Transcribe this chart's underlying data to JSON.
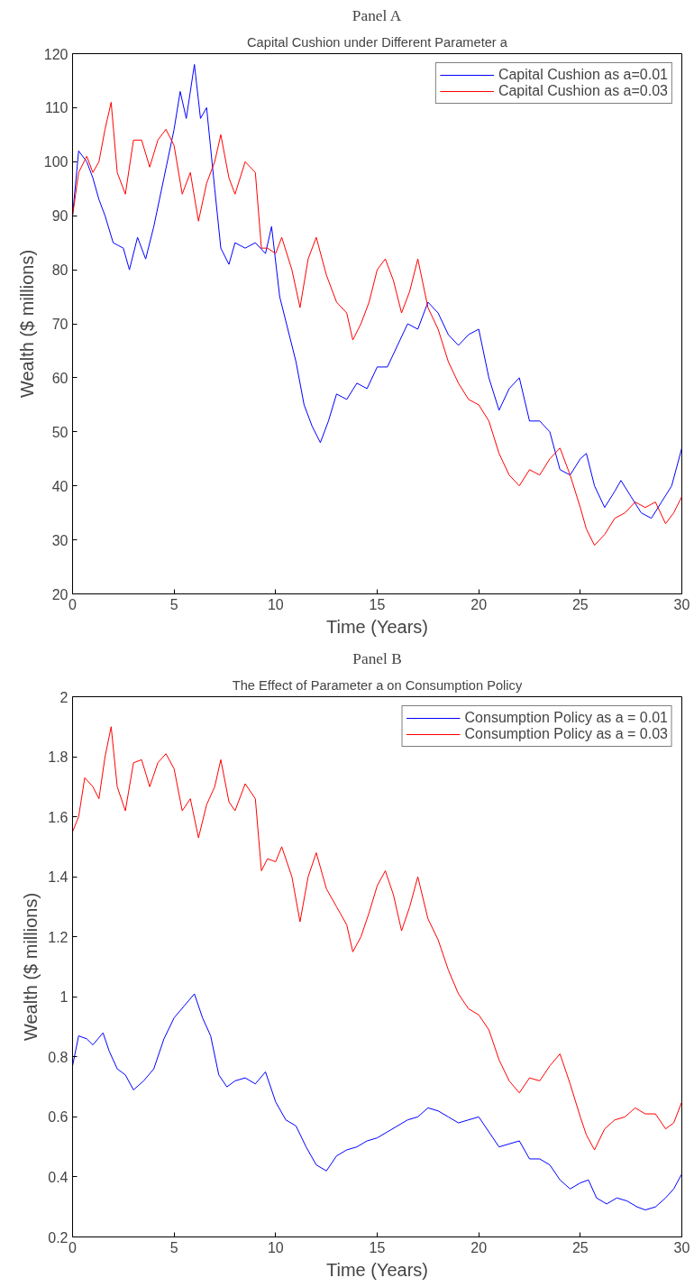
{
  "chart_data": [
    {
      "type": "line",
      "title": "Panel A",
      "subtitle": "Capital Cushion under Different Parameter a",
      "xlabel": "Time (Years)",
      "ylabel": "Wealth ($ millions)",
      "xlim": [
        0,
        30
      ],
      "ylim": [
        20,
        120
      ],
      "xticks": [
        0,
        5,
        10,
        15,
        20,
        25,
        30
      ],
      "yticks": [
        20,
        30,
        40,
        50,
        60,
        70,
        80,
        90,
        100,
        110,
        120
      ],
      "grid": false,
      "legend": "top right",
      "marker": "none",
      "line_style": "solid",
      "series": [
        {
          "name": "Capital Cushion as a=0.01",
          "color": "#0000ff",
          "x": [
            0,
            0.3,
            0.7,
            1.0,
            1.3,
            1.6,
            2.0,
            2.5,
            2.8,
            3.2,
            3.6,
            4.0,
            4.5,
            5.0,
            5.3,
            5.6,
            6.0,
            6.3,
            6.6,
            7.0,
            7.3,
            7.7,
            8.0,
            8.5,
            9.0,
            9.5,
            9.8,
            10.2,
            10.6,
            11.0,
            11.4,
            11.8,
            12.2,
            12.6,
            13.0,
            13.5,
            14.0,
            14.5,
            15.0,
            15.5,
            16.0,
            16.5,
            17.0,
            17.5,
            18.0,
            18.5,
            19.0,
            19.5,
            20.0,
            20.5,
            21.0,
            21.5,
            22.0,
            22.5,
            23.0,
            23.5,
            24.0,
            24.5,
            25.0,
            25.3,
            25.7,
            26.2,
            26.7,
            27.0,
            27.5,
            28.0,
            28.5,
            29.0,
            29.5,
            30
          ],
          "values": [
            90,
            102,
            100,
            97,
            93,
            90,
            85,
            84,
            80,
            86,
            82,
            88,
            97,
            106,
            113,
            108,
            118,
            108,
            110,
            95,
            84,
            81,
            85,
            84,
            85,
            83,
            88,
            75,
            69,
            63,
            55,
            51,
            48,
            52,
            57,
            56,
            59,
            58,
            62,
            62,
            66,
            70,
            69,
            74,
            72,
            68,
            66,
            68,
            69,
            60,
            54,
            58,
            60,
            52,
            52,
            50,
            43,
            42,
            45,
            46,
            40,
            36,
            39,
            41,
            38,
            35,
            34,
            37,
            40,
            47
          ]
        },
        {
          "name": "Capital Cushion as a=0.03",
          "color": "#ff0000",
          "x": [
            0,
            0.3,
            0.7,
            1.0,
            1.3,
            1.6,
            1.9,
            2.2,
            2.6,
            3.0,
            3.4,
            3.8,
            4.2,
            4.6,
            5.0,
            5.4,
            5.8,
            6.2,
            6.6,
            7.0,
            7.3,
            7.7,
            8.0,
            8.5,
            9.0,
            9.3,
            9.6,
            10.0,
            10.3,
            10.8,
            11.2,
            11.6,
            12.0,
            12.5,
            13.0,
            13.5,
            13.8,
            14.2,
            14.6,
            15.0,
            15.4,
            15.8,
            16.2,
            16.6,
            17.0,
            17.5,
            18.0,
            18.5,
            19.0,
            19.5,
            20.0,
            20.5,
            21.0,
            21.5,
            22.0,
            22.5,
            23.0,
            23.5,
            24.0,
            24.5,
            25.0,
            25.3,
            25.7,
            26.2,
            26.7,
            27.2,
            27.7,
            28.2,
            28.7,
            29.2,
            29.6,
            30
          ],
          "values": [
            90,
            98,
            101,
            98,
            100,
            106,
            111,
            98,
            94,
            104,
            104,
            99,
            104,
            106,
            103,
            94,
            98,
            89,
            96,
            100,
            105,
            97,
            94,
            100,
            98,
            84,
            84,
            83,
            86,
            80,
            73,
            82,
            86,
            79,
            74,
            72,
            67,
            70,
            74,
            80,
            82,
            78,
            72,
            76,
            82,
            73,
            69,
            63,
            59,
            56,
            55,
            52,
            46,
            42,
            40,
            43,
            42,
            45,
            47,
            42,
            36,
            32,
            29,
            31,
            34,
            35,
            37,
            36,
            37,
            33,
            35,
            38
          ]
        }
      ]
    },
    {
      "type": "line",
      "title": "Panel B",
      "subtitle": "The Effect of Parameter a on Consumption Policy",
      "xlabel": "Time (Years)",
      "ylabel": "Wealth ($ millions)",
      "xlim": [
        0,
        30
      ],
      "ylim": [
        0.2,
        2
      ],
      "xticks": [
        0,
        5,
        10,
        15,
        20,
        25,
        30
      ],
      "yticks": [
        0.2,
        0.4,
        0.6,
        0.8,
        1,
        1.2,
        1.4,
        1.6,
        1.8,
        2
      ],
      "grid": false,
      "legend": "top right",
      "marker": "none",
      "line_style": "solid",
      "series": [
        {
          "name": "Consumption Policy as a = 0.01",
          "color": "#0000ff",
          "x": [
            0,
            0.3,
            0.7,
            1.0,
            1.5,
            1.8,
            2.2,
            2.6,
            3.0,
            3.5,
            4.0,
            4.5,
            5.0,
            5.5,
            6.0,
            6.4,
            6.8,
            7.2,
            7.6,
            8.0,
            8.5,
            9.0,
            9.5,
            10.0,
            10.5,
            11.0,
            11.5,
            12.0,
            12.5,
            13.0,
            13.5,
            14.0,
            14.5,
            15.0,
            15.5,
            16.0,
            16.5,
            17.0,
            17.5,
            18.0,
            18.5,
            19.0,
            19.5,
            20.0,
            20.5,
            21.0,
            21.5,
            22.0,
            22.5,
            23.0,
            23.5,
            24.0,
            24.5,
            25.0,
            25.4,
            25.8,
            26.3,
            26.8,
            27.3,
            27.8,
            28.2,
            28.7,
            29.2,
            29.6,
            30
          ],
          "values": [
            0.77,
            0.87,
            0.86,
            0.84,
            0.88,
            0.82,
            0.76,
            0.74,
            0.69,
            0.72,
            0.76,
            0.86,
            0.93,
            0.97,
            1.01,
            0.93,
            0.87,
            0.74,
            0.7,
            0.72,
            0.73,
            0.71,
            0.75,
            0.65,
            0.59,
            0.57,
            0.5,
            0.44,
            0.42,
            0.47,
            0.49,
            0.5,
            0.52,
            0.53,
            0.55,
            0.57,
            0.59,
            0.6,
            0.63,
            0.62,
            0.6,
            0.58,
            0.59,
            0.6,
            0.55,
            0.5,
            0.51,
            0.52,
            0.46,
            0.46,
            0.44,
            0.39,
            0.36,
            0.38,
            0.39,
            0.33,
            0.31,
            0.33,
            0.32,
            0.3,
            0.29,
            0.3,
            0.33,
            0.36,
            0.41
          ]
        },
        {
          "name": "Consumption Policy as a = 0.03",
          "color": "#ff0000",
          "x": [
            0,
            0.3,
            0.6,
            1.0,
            1.3,
            1.6,
            1.9,
            2.2,
            2.6,
            3.0,
            3.4,
            3.8,
            4.2,
            4.6,
            5.0,
            5.4,
            5.8,
            6.2,
            6.6,
            7.0,
            7.3,
            7.7,
            8.0,
            8.5,
            9.0,
            9.3,
            9.6,
            10.0,
            10.3,
            10.8,
            11.2,
            11.6,
            12.0,
            12.5,
            13.0,
            13.5,
            13.8,
            14.2,
            14.6,
            15.0,
            15.4,
            15.8,
            16.2,
            16.6,
            17.0,
            17.5,
            18.0,
            18.5,
            19.0,
            19.5,
            20.0,
            20.5,
            21.0,
            21.5,
            22.0,
            22.5,
            23.0,
            23.5,
            24.0,
            24.5,
            25.0,
            25.3,
            25.7,
            26.2,
            26.7,
            27.2,
            27.7,
            28.2,
            28.7,
            29.2,
            29.6,
            30
          ],
          "values": [
            1.55,
            1.6,
            1.73,
            1.7,
            1.66,
            1.8,
            1.9,
            1.7,
            1.62,
            1.78,
            1.79,
            1.7,
            1.78,
            1.81,
            1.76,
            1.62,
            1.66,
            1.53,
            1.64,
            1.7,
            1.79,
            1.65,
            1.62,
            1.71,
            1.66,
            1.42,
            1.46,
            1.45,
            1.5,
            1.4,
            1.25,
            1.4,
            1.48,
            1.36,
            1.3,
            1.24,
            1.15,
            1.2,
            1.28,
            1.37,
            1.42,
            1.34,
            1.22,
            1.3,
            1.4,
            1.26,
            1.19,
            1.09,
            1.01,
            0.96,
            0.94,
            0.89,
            0.79,
            0.72,
            0.68,
            0.73,
            0.72,
            0.77,
            0.81,
            0.71,
            0.6,
            0.54,
            0.49,
            0.56,
            0.59,
            0.6,
            0.63,
            0.61,
            0.61,
            0.56,
            0.58,
            0.65
          ]
        }
      ]
    }
  ]
}
